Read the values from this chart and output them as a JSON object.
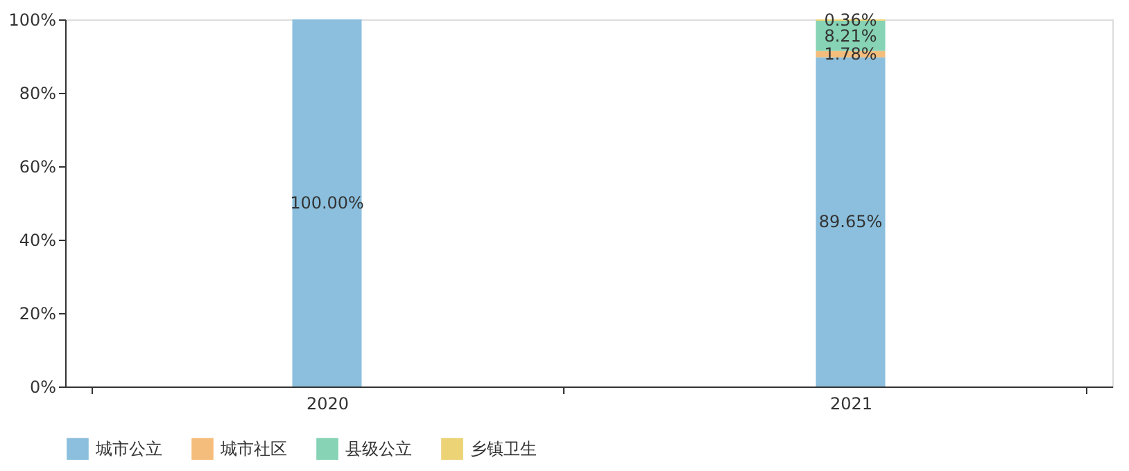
{
  "chart_data": {
    "type": "bar",
    "stacked": true,
    "categories": [
      "2020",
      "2021"
    ],
    "series": [
      {
        "name": "城市公立",
        "color": "#8bbfdd",
        "values": [
          100,
          89.65
        ],
        "value_labels": [
          "100.00%",
          "89.65%"
        ]
      },
      {
        "name": "城市社区",
        "color": "#f5bd7c",
        "values": [
          0,
          1.78
        ],
        "value_labels": [
          null,
          "1.78%"
        ]
      },
      {
        "name": "县级公立",
        "color": "#86d3b5",
        "values": [
          0,
          8.21
        ],
        "value_labels": [
          null,
          "8.21%"
        ]
      },
      {
        "name": "乡镇卫生",
        "color": "#ecd376",
        "values": [
          0,
          0.36
        ],
        "value_labels": [
          null,
          "0.36%"
        ]
      }
    ],
    "ylim": [
      0,
      100
    ],
    "yticks": [
      {
        "value": 0,
        "label": "0%"
      },
      {
        "value": 20,
        "label": "20%"
      },
      {
        "value": 40,
        "label": "40%"
      },
      {
        "value": 60,
        "label": "60%"
      },
      {
        "value": 80,
        "label": "80%"
      },
      {
        "value": 100,
        "label": "100%"
      }
    ],
    "legend": "bottom",
    "grid": false
  }
}
